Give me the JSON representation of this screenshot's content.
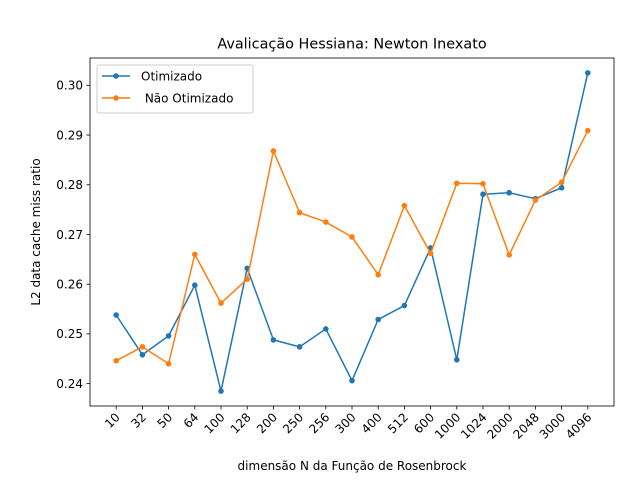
{
  "chart_data": {
    "type": "line",
    "title": "Avalicação Hessiana:  Newton Inexato",
    "xlabel": "dimensão N da Função de Rosenbrock",
    "ylabel": "L2 data cache miss ratio",
    "categories": [
      "10",
      "32",
      "50",
      "64",
      "100",
      "128",
      "200",
      "250",
      "256",
      "300",
      "400",
      "512",
      "600",
      "1000",
      "1024",
      "2000",
      "2048",
      "3000",
      "4096"
    ],
    "ylim": [
      0.2355,
      0.3055
    ],
    "yticks": [
      "0.24",
      "0.25",
      "0.26",
      "0.27",
      "0.28",
      "0.29",
      "0.30"
    ],
    "legend_position": "top-left",
    "grid": false,
    "series": [
      {
        "name": "Otimizado",
        "color": "#1f77b4",
        "values": [
          0.2538,
          0.2458,
          0.2496,
          0.2598,
          0.2385,
          0.2632,
          0.2488,
          0.2474,
          0.251,
          0.2406,
          0.2529,
          0.2557,
          0.2673,
          0.2448,
          0.2781,
          0.2784,
          0.2772,
          0.2794,
          0.3025
        ]
      },
      {
        "name": " Não Otimizado",
        "color": "#ff7f0e",
        "values": [
          0.2446,
          0.2474,
          0.244,
          0.266,
          0.2562,
          0.261,
          0.2868,
          0.2744,
          0.2725,
          0.2695,
          0.2619,
          0.2758,
          0.2662,
          0.2803,
          0.2802,
          0.2659,
          0.2769,
          0.2805,
          0.2909
        ]
      }
    ]
  }
}
